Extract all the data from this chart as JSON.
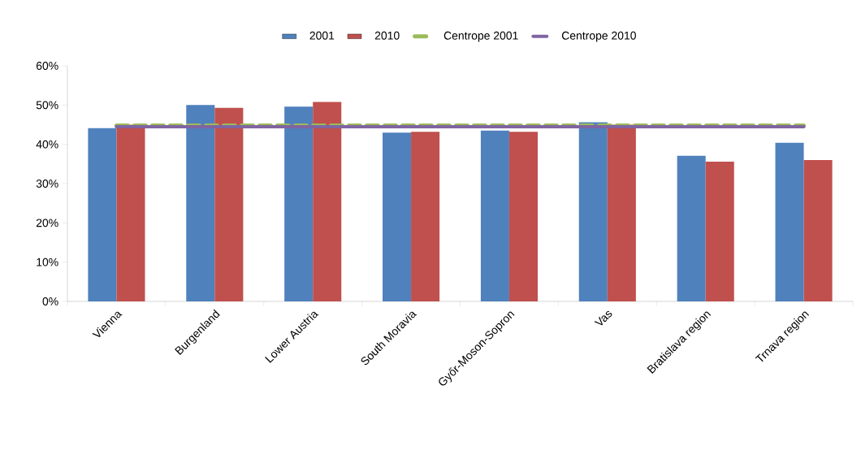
{
  "chart_data": {
    "type": "bar",
    "categories": [
      "Vienna",
      "Burgenland",
      "Lower Austria",
      "South Moravia",
      "Győr-Moson-Sopron",
      "Vas",
      "Bratislava region",
      "Trnava region"
    ],
    "series": [
      {
        "name": "2001",
        "color": "#4f81bd",
        "values": [
          44.1,
          50.0,
          49.6,
          43.0,
          43.5,
          45.6,
          37.1,
          40.4
        ]
      },
      {
        "name": "2010",
        "color": "#c0504d",
        "values": [
          45.0,
          49.3,
          50.8,
          43.2,
          43.2,
          45.0,
          35.6,
          36.0
        ]
      },
      {
        "name": "Centrope 2001",
        "type": "line",
        "line_style": "dashed",
        "color": "#9bbb59",
        "values": [
          44.8,
          44.8,
          44.8,
          44.8,
          44.8,
          44.8,
          44.8,
          44.8
        ]
      },
      {
        "name": "Centrope 2010",
        "type": "line",
        "line_style": "solid",
        "color": "#8064a2",
        "values": [
          44.5,
          44.5,
          44.5,
          44.5,
          44.5,
          44.5,
          44.5,
          44.5
        ]
      }
    ],
    "ylim": [
      0,
      60
    ],
    "yticks": [
      {
        "value": 0,
        "label": "0%"
      },
      {
        "value": 10,
        "label": "10%"
      },
      {
        "value": 20,
        "label": "20%"
      },
      {
        "value": 30,
        "label": "30%"
      },
      {
        "value": 40,
        "label": "40%"
      },
      {
        "value": 50,
        "label": "50%"
      },
      {
        "value": 60,
        "label": "60%"
      }
    ],
    "grid": false,
    "legend": "top",
    "marker": "none"
  }
}
